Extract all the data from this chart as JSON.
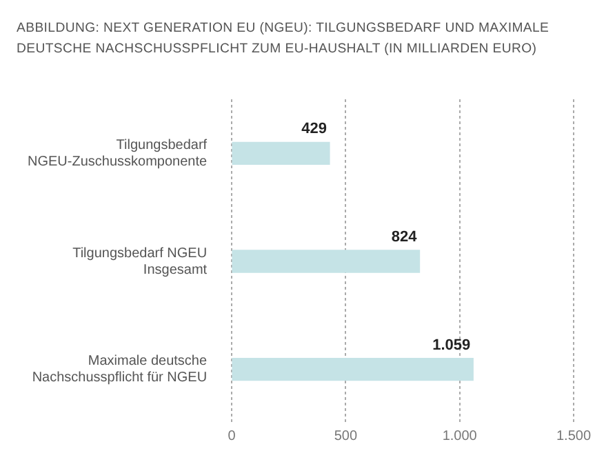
{
  "chart_data": {
    "type": "bar",
    "orientation": "horizontal",
    "title": "ABBILDUNG: NEXT GENERATION EU (NGEU): TILGUNGSBEDARF UND MAXIMALE DEUTSCHE NACHSCHUSSPFLICHT ZUM EU-HAUSHALT (IN MILLIARDEN EURO)",
    "categories": [
      "Tilgungsbedarf NGEU-Zuschusskomponente",
      "Tilgungsbedarf NGEU Insgesamt",
      "Maximale deutsche Nachschusspflicht für NGEU"
    ],
    "values": [
      429,
      824,
      1059
    ],
    "value_labels": [
      "429",
      "824",
      "1.059"
    ],
    "color": "#c5e3e6",
    "xlim": [
      0,
      1500
    ],
    "xticks": [
      0,
      500,
      {
        "value": 1000,
        "label": "1.000"
      },
      {
        "value": 1500,
        "label": "1.500"
      }
    ],
    "grid": "x",
    "legend": false
  }
}
